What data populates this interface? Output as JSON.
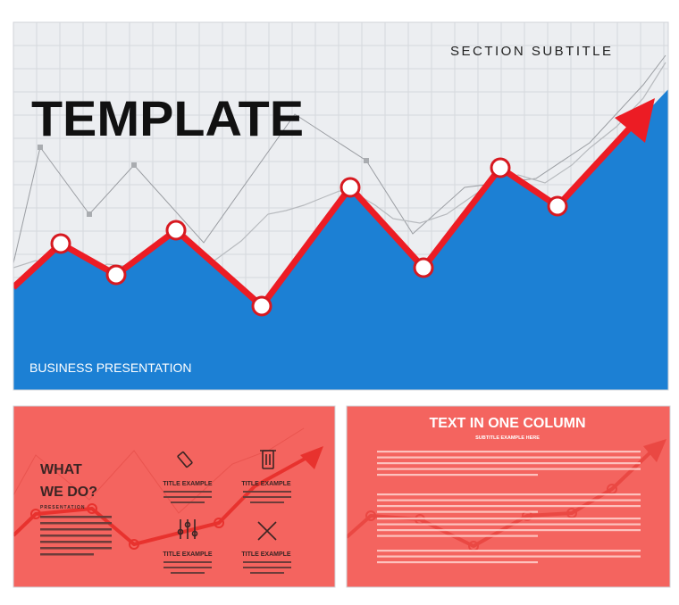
{
  "main_slide": {
    "title": "TEMPLATE",
    "subtitle": "SECTION SUBTITLE",
    "footer": "BUSINESS PRESENTATION"
  },
  "slide_2": {
    "title_lines": [
      "WHAT",
      "WE DO?"
    ],
    "label": "PRESENTATION",
    "items": [
      "TITLE EXAMPLE",
      "TITLE EXAMPLE",
      "TITLE EXAMPLE",
      "TITLE EXAMPLE"
    ]
  },
  "slide_3": {
    "title": "TEXT IN ONE COLUMN",
    "subtitle": "SUBTITLE EXAMPLE HERE"
  }
}
